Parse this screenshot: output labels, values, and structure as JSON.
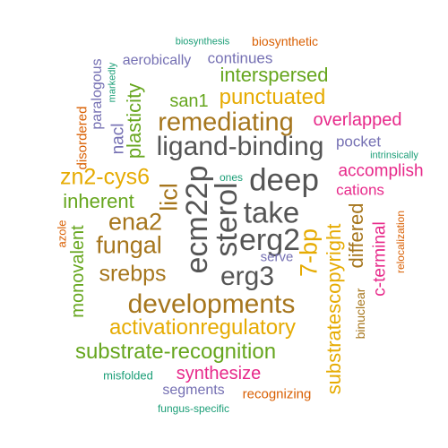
{
  "colors": {
    "orange": "#d95f02",
    "green": "#1b9e77",
    "purple": "#7570b3",
    "magenta": "#e7298a",
    "lime": "#66a61e",
    "gold": "#e6ab02",
    "brown": "#a6761d",
    "gray": "#555555"
  },
  "words": [
    "biosynthesis",
    "biosynthetic",
    "aerobically",
    "continues",
    "markedly",
    "paralogous",
    "interspersed",
    "disordered",
    "plasticity",
    "punctuated",
    "san1",
    "remediating",
    "overlapped",
    "nacl",
    "pocket",
    "intrinsically",
    "ligand-binding",
    "accomplish",
    "zn2-cys6",
    "deep",
    "ones",
    "cations",
    "inherent",
    "licl",
    "ecm22p",
    "sterol",
    "take",
    "erg2",
    "ena2",
    "substratescopyright",
    "differed",
    "relocalization",
    "c-terminal",
    "azole",
    "fungal",
    "7-bp",
    "monovalent",
    "serve",
    "erg3",
    "srebps",
    "binuclear",
    "developments",
    "activationregulatory",
    "substrate-recognition",
    "synthesize",
    "misfolded",
    "segments",
    "recognizing",
    "fungus-specific"
  ]
}
